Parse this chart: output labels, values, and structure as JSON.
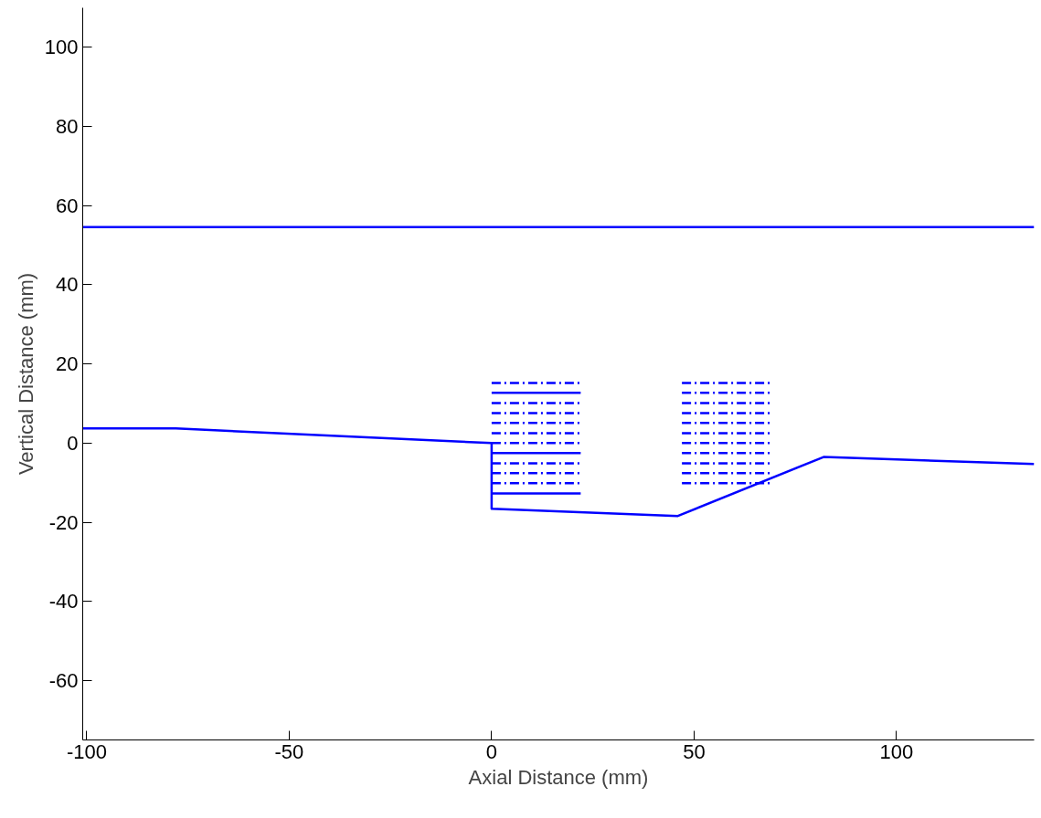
{
  "chart_data": {
    "type": "line",
    "xlabel": "Axial Distance (mm)",
    "ylabel": "Vertical Distance (mm)",
    "xlim": [
      -101,
      134
    ],
    "ylim": [
      -75,
      110
    ],
    "xticks": [
      -100,
      -50,
      0,
      50,
      100
    ],
    "yticks": [
      -60,
      -40,
      -20,
      0,
      20,
      40,
      60,
      80,
      100
    ],
    "grid": false,
    "line_style": "solid",
    "series": [
      {
        "color": "#0000ff",
        "x": [
          -101,
          134
        ],
        "values": [
          54.6,
          54.6
        ]
      },
      {
        "color": "#0000ff",
        "x": [
          -101,
          -78,
          0,
          0,
          46,
          82,
          134
        ],
        "values": [
          3.7,
          3.7,
          0,
          -16.6,
          -18.4,
          -3.5,
          -5.3
        ]
      },
      {
        "color": "#0000ff",
        "line_style": "dashdot",
        "x": [
          0,
          22
        ],
        "values": [
          15.2,
          15.2
        ]
      },
      {
        "color": "#0000ff",
        "x": [
          0,
          22
        ],
        "values": [
          12.7,
          12.7
        ]
      },
      {
        "color": "#0000ff",
        "line_style": "dashdot",
        "x": [
          0,
          22
        ],
        "values": [
          10.1,
          10.1
        ]
      },
      {
        "color": "#0000ff",
        "line_style": "dashdot",
        "x": [
          0,
          22
        ],
        "values": [
          7.6,
          7.6
        ]
      },
      {
        "color": "#0000ff",
        "line_style": "dashdot",
        "x": [
          0,
          22
        ],
        "values": [
          5.1,
          5.1
        ]
      },
      {
        "color": "#0000ff",
        "line_style": "dashdot",
        "x": [
          0,
          22
        ],
        "values": [
          2.5,
          2.5
        ]
      },
      {
        "color": "#0000ff",
        "line_style": "dashdot",
        "x": [
          0,
          22
        ],
        "values": [
          0,
          0
        ]
      },
      {
        "color": "#0000ff",
        "x": [
          0,
          22
        ],
        "values": [
          -2.5,
          -2.5
        ]
      },
      {
        "color": "#0000ff",
        "line_style": "dashdot",
        "x": [
          0,
          22
        ],
        "values": [
          -5.1,
          -5.1
        ]
      },
      {
        "color": "#0000ff",
        "line_style": "dashdot",
        "x": [
          0,
          22
        ],
        "values": [
          -7.6,
          -7.6
        ]
      },
      {
        "color": "#0000ff",
        "line_style": "dashdot",
        "x": [
          0,
          22
        ],
        "values": [
          -10.1,
          -10.1
        ]
      },
      {
        "color": "#0000ff",
        "x": [
          0,
          22
        ],
        "values": [
          -12.7,
          -12.7
        ]
      },
      {
        "color": "#0000ff",
        "line_style": "dashdot",
        "x": [
          47,
          69
        ],
        "values": [
          15.2,
          15.2
        ]
      },
      {
        "color": "#0000ff",
        "line_style": "dashdot",
        "x": [
          47,
          69
        ],
        "values": [
          12.7,
          12.7
        ]
      },
      {
        "color": "#0000ff",
        "line_style": "dashdot",
        "x": [
          47,
          69
        ],
        "values": [
          10.1,
          10.1
        ]
      },
      {
        "color": "#0000ff",
        "line_style": "dashdot",
        "x": [
          47,
          69
        ],
        "values": [
          7.6,
          7.6
        ]
      },
      {
        "color": "#0000ff",
        "line_style": "dashdot",
        "x": [
          47,
          69
        ],
        "values": [
          5.1,
          5.1
        ]
      },
      {
        "color": "#0000ff",
        "line_style": "dashdot",
        "x": [
          47,
          69
        ],
        "values": [
          2.5,
          2.5
        ]
      },
      {
        "color": "#0000ff",
        "line_style": "dashdot",
        "x": [
          47,
          69
        ],
        "values": [
          0,
          0
        ]
      },
      {
        "color": "#0000ff",
        "line_style": "dashdot",
        "x": [
          47,
          69
        ],
        "values": [
          -2.5,
          -2.5
        ]
      },
      {
        "color": "#0000ff",
        "line_style": "dashdot",
        "x": [
          47,
          69
        ],
        "values": [
          -5.1,
          -5.1
        ]
      },
      {
        "color": "#0000ff",
        "line_style": "dashdot",
        "x": [
          47,
          69
        ],
        "values": [
          -7.6,
          -7.6
        ]
      },
      {
        "color": "#0000ff",
        "line_style": "dashdot",
        "x": [
          47,
          69
        ],
        "values": [
          -10.1,
          -10.1
        ]
      }
    ]
  }
}
